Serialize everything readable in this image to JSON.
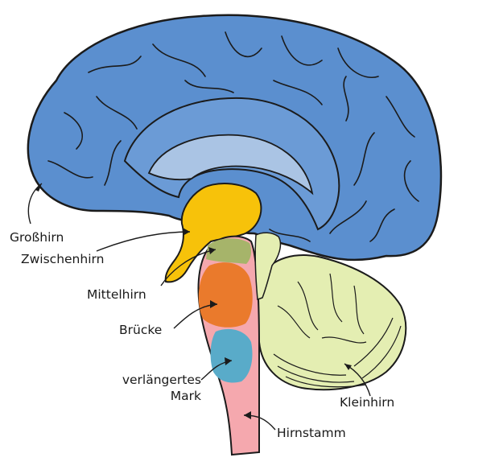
{
  "labels": {
    "grosshirn": "Großhirn",
    "zwischenhirn": "Zwischenhirn",
    "mittelhirn": "Mittelhirn",
    "bruecke": "Brücke",
    "verlaengertes_line1": "verlängertes",
    "verlaengertes_line2": "Mark",
    "kleinhirn": "Kleinhirn",
    "hirnstamm": "Hirnstamm"
  },
  "colors": {
    "cerebrum": "#5b8fcf",
    "cerebrum_inner": "#aac4e4",
    "diencephalon": "#f7c20a",
    "midbrain": "#a6b46a",
    "pons": "#ea7a2c",
    "medulla": "#59abc9",
    "brainstem": "#f5a8ae",
    "cerebellum": "#e4eeb2",
    "outline": "#1b1b1b"
  }
}
